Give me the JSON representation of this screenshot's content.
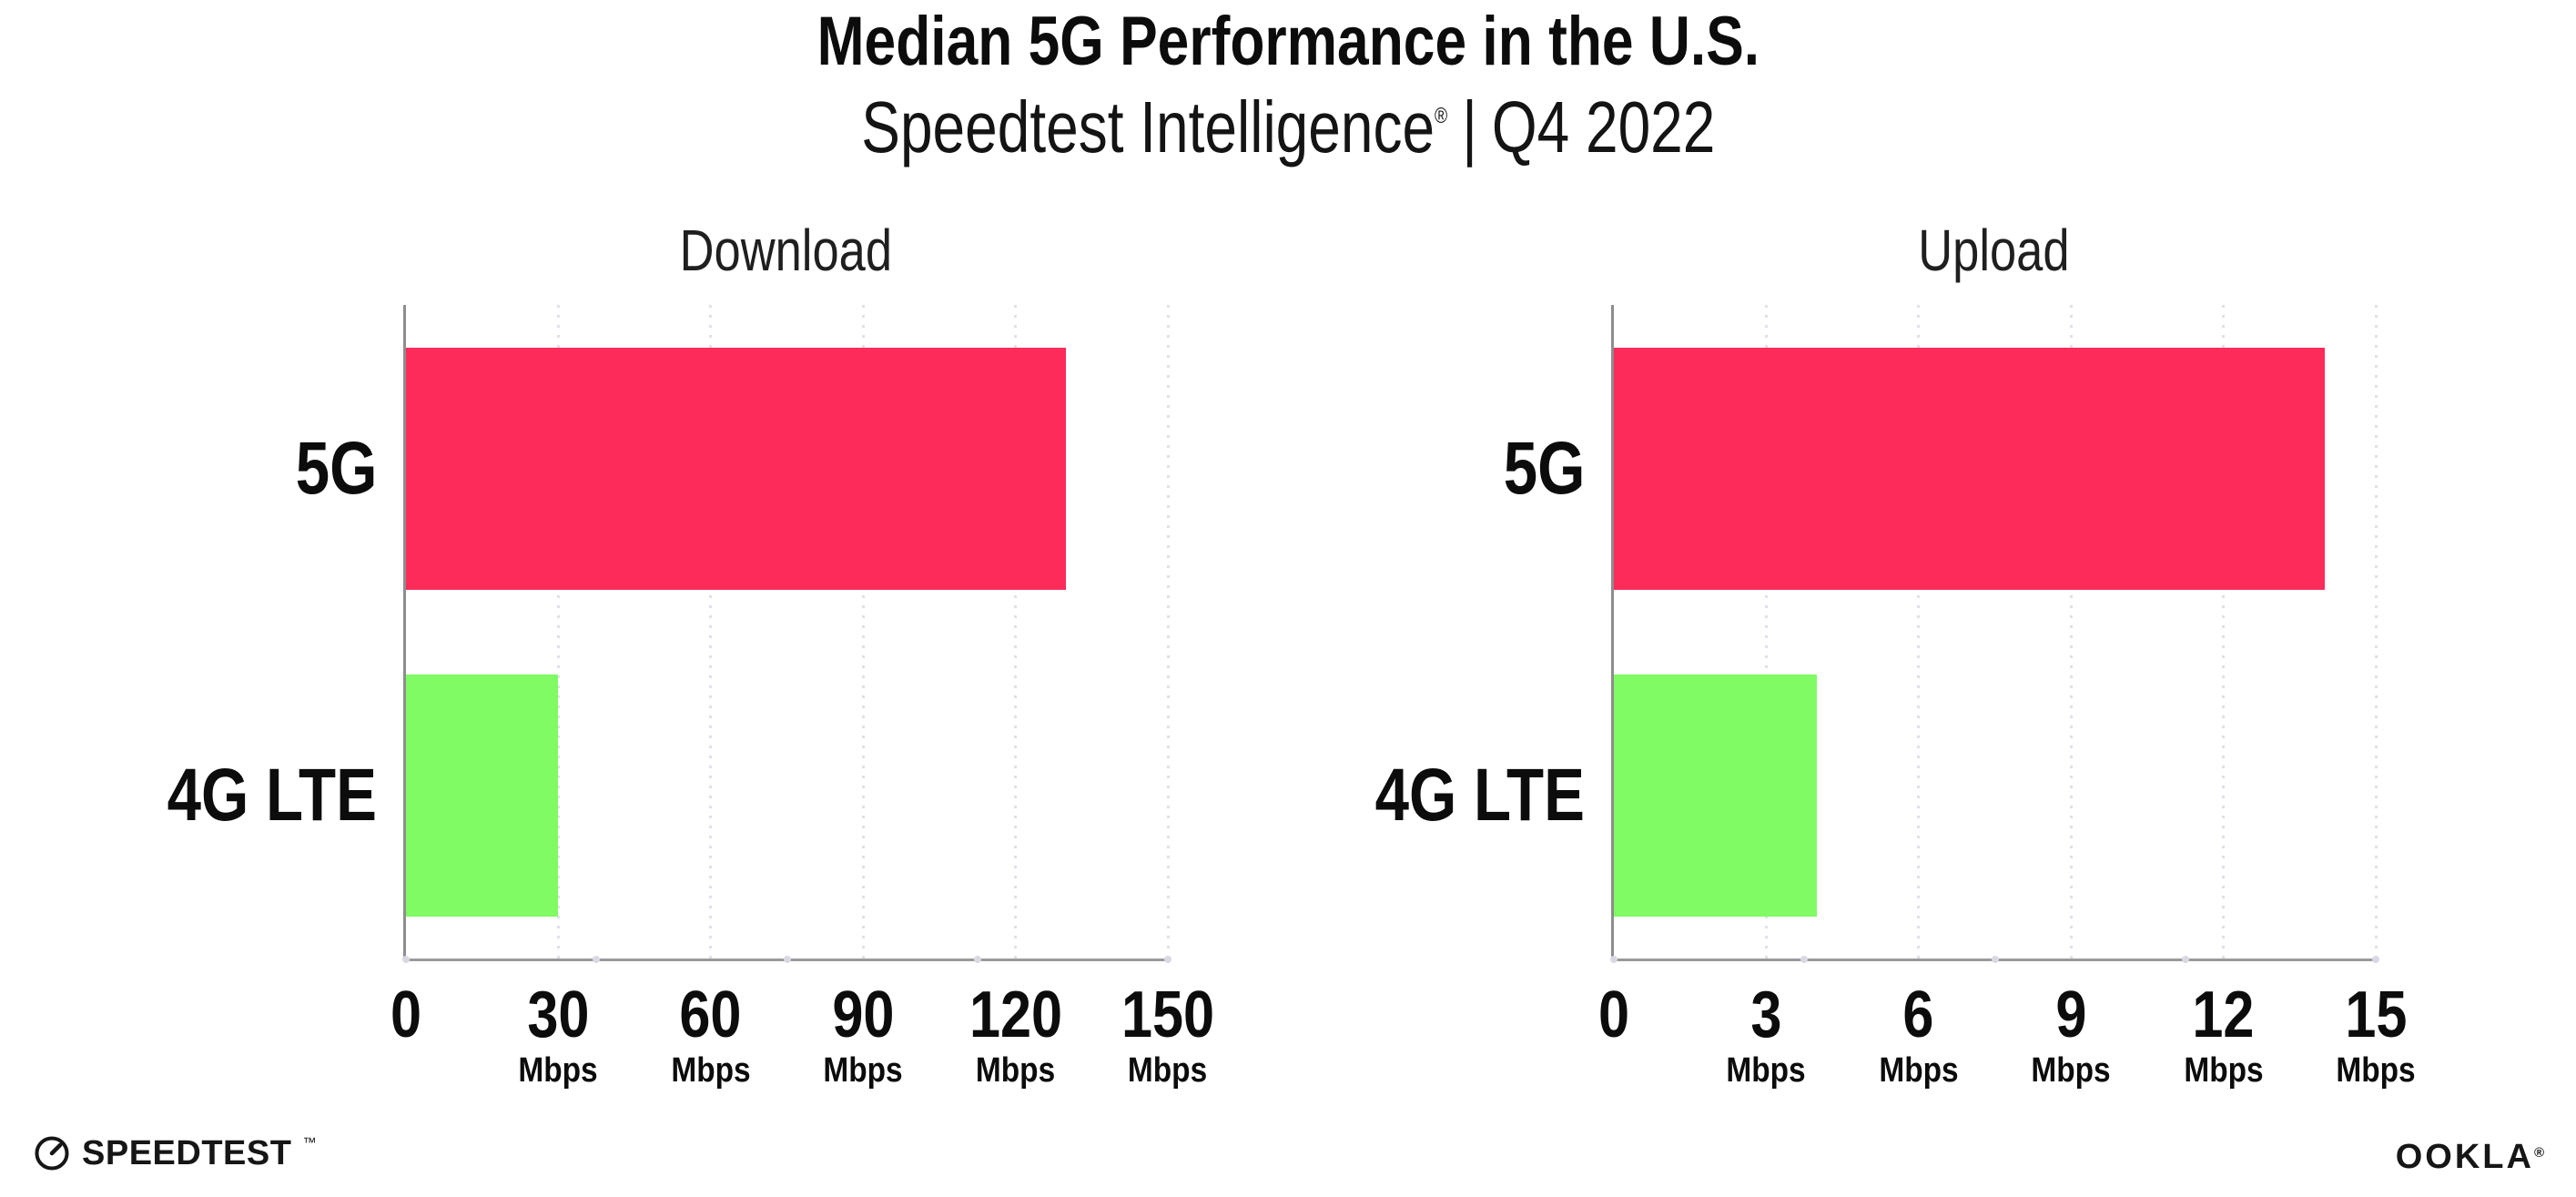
{
  "header": {
    "title": "Median 5G Performance in the U.S.",
    "subtitle": {
      "product": "Speedtest Intelligence",
      "registered_mark": "®",
      "separator": "|",
      "period": "Q4 2022"
    }
  },
  "chart_data": [
    {
      "type": "bar",
      "orientation": "horizontal",
      "title": "Download",
      "categories": [
        "5G",
        "4G LTE"
      ],
      "values": [
        130,
        30
      ],
      "unit": "Mbps",
      "xlim": [
        0,
        150
      ],
      "ticks": [
        0,
        30,
        60,
        90,
        120,
        150
      ],
      "grid": "dotted-vertical-at-ticks",
      "legend": "none",
      "bar_colors": [
        "#fc2b5a",
        "#80fb64"
      ]
    },
    {
      "type": "bar",
      "orientation": "horizontal",
      "title": "Upload",
      "categories": [
        "5G",
        "4G LTE"
      ],
      "values": [
        14,
        4
      ],
      "unit": "Mbps",
      "xlim": [
        0,
        15
      ],
      "ticks": [
        0,
        3,
        6,
        9,
        12,
        15
      ],
      "grid": "dotted-vertical-at-ticks",
      "legend": "none",
      "bar_colors": [
        "#fc2b5a",
        "#80fb64"
      ]
    }
  ],
  "footer": {
    "speedtest_logo": {
      "text": "SPEEDTEST",
      "mark": "™",
      "icon": "speedtest-gauge-icon"
    },
    "ookla_logo": {
      "text": "OOKLA",
      "mark": "®"
    }
  },
  "colors": {
    "bar_5g": "#fc2b5a",
    "bar_4g_lte": "#80fb64",
    "spine": "#8d8d8d",
    "axis_line": "#9a9a9a",
    "gridline": "#e0e0ea",
    "text": "#0c0c0c"
  }
}
